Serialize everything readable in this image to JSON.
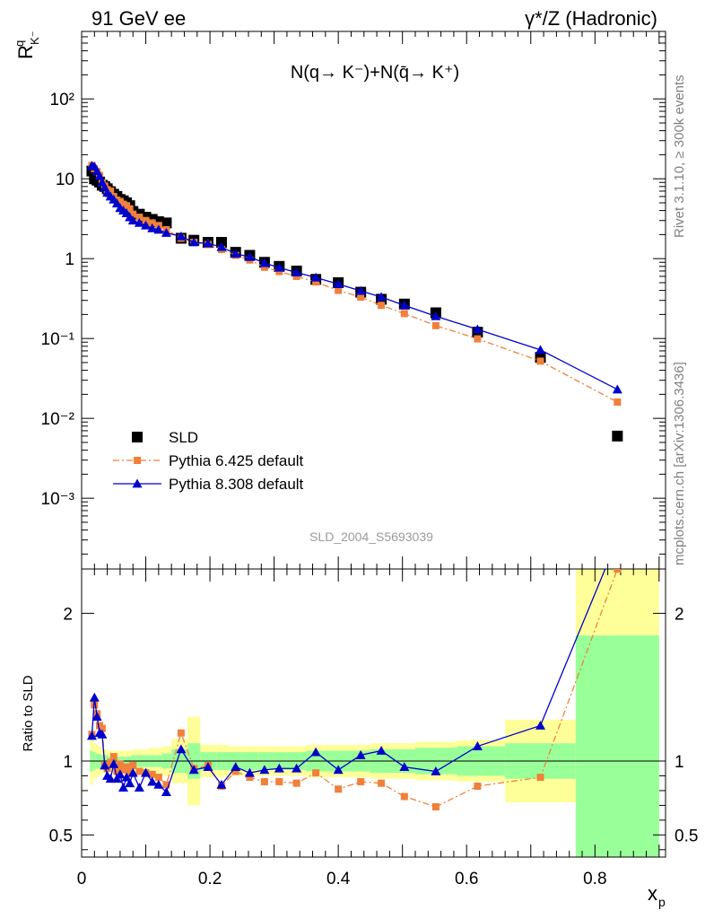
{
  "header": {
    "left": "91 GeV ee",
    "right": "γ*/Z (Hadronic)"
  },
  "side_labels": {
    "rivet": "Rivet 3.1.10, ≥ 300k events",
    "mcplots": "mcplots.cern.ch [arXiv:1306.3436]"
  },
  "watermark": "SLD_2004_S5693039",
  "chart_data": [
    {
      "type": "scatter",
      "panel": "main",
      "title": "N(q→ K⁻)+N(q̄→ K⁺)",
      "ylabel": "R^q_K⁻",
      "yscale": "log",
      "ylim": [
        0.00013,
        700
      ],
      "xlim": [
        0,
        0.91
      ],
      "y_ticks": [
        "10⁻³",
        "10⁻²",
        "10⁻¹",
        "1",
        "10",
        "10²"
      ],
      "legend": [
        "SLD",
        "Pythia 6.425 default",
        "Pythia 8.308 default"
      ],
      "series": [
        {
          "name": "SLD",
          "color": "#000000",
          "marker": "square",
          "x": [
            0.016,
            0.02,
            0.024,
            0.028,
            0.032,
            0.036,
            0.04,
            0.045,
            0.05,
            0.055,
            0.06,
            0.065,
            0.07,
            0.075,
            0.08,
            0.09,
            0.1,
            0.11,
            0.12,
            0.132,
            0.155,
            0.175,
            0.197,
            0.218,
            0.24,
            0.262,
            0.285,
            0.308,
            0.335,
            0.365,
            0.4,
            0.435,
            0.467,
            0.503,
            0.552,
            0.617,
            0.715,
            0.835
          ],
          "y": [
            12.5,
            10.0,
            9.6,
            9.1,
            8.3,
            8.0,
            7.5,
            6.9,
            6.4,
            6.0,
            5.5,
            5.3,
            5.0,
            4.6,
            3.9,
            3.6,
            3.3,
            3.1,
            2.9,
            2.8,
            1.8,
            1.7,
            1.6,
            1.6,
            1.2,
            1.1,
            0.9,
            0.8,
            0.7,
            0.55,
            0.5,
            0.38,
            0.31,
            0.27,
            0.21,
            0.12,
            0.058,
            0.006
          ]
        },
        {
          "name": "Pythia 6.425 default",
          "color": "#f0803a",
          "marker": "square",
          "x": [
            0.016,
            0.02,
            0.024,
            0.028,
            0.032,
            0.036,
            0.04,
            0.045,
            0.05,
            0.055,
            0.06,
            0.065,
            0.07,
            0.075,
            0.08,
            0.09,
            0.1,
            0.11,
            0.12,
            0.132,
            0.155,
            0.175,
            0.197,
            0.218,
            0.24,
            0.262,
            0.285,
            0.308,
            0.335,
            0.365,
            0.4,
            0.435,
            0.467,
            0.503,
            0.552,
            0.617,
            0.715,
            0.835
          ],
          "y": [
            14.7,
            13.4,
            12.3,
            11.0,
            8.9,
            8.1,
            7.3,
            7.0,
            6.0,
            5.4,
            5.2,
            4.8,
            4.6,
            4.2,
            3.6,
            3.3,
            3.0,
            2.8,
            2.6,
            2.3,
            1.8,
            1.6,
            1.5,
            1.3,
            1.1,
            0.96,
            0.78,
            0.69,
            0.6,
            0.51,
            0.4,
            0.33,
            0.26,
            0.205,
            0.145,
            0.099,
            0.052,
            0.016
          ]
        },
        {
          "name": "Pythia 8.308 default",
          "color": "#0000cc",
          "marker": "triangle",
          "x": [
            0.016,
            0.02,
            0.024,
            0.028,
            0.032,
            0.036,
            0.04,
            0.045,
            0.05,
            0.055,
            0.06,
            0.065,
            0.07,
            0.075,
            0.08,
            0.09,
            0.1,
            0.11,
            0.12,
            0.132,
            0.155,
            0.175,
            0.197,
            0.218,
            0.24,
            0.262,
            0.285,
            0.308,
            0.335,
            0.365,
            0.4,
            0.435,
            0.467,
            0.503,
            0.552,
            0.617,
            0.715,
            0.835
          ],
          "y": [
            14.6,
            14.2,
            12.5,
            10.8,
            9.0,
            7.8,
            6.7,
            6.0,
            5.5,
            4.9,
            4.3,
            4.0,
            3.7,
            3.3,
            3.0,
            2.8,
            2.6,
            2.4,
            2.3,
            2.1,
            1.9,
            1.6,
            1.55,
            1.4,
            1.15,
            1.05,
            0.88,
            0.77,
            0.67,
            0.58,
            0.48,
            0.395,
            0.33,
            0.26,
            0.19,
            0.13,
            0.072,
            0.023
          ]
        }
      ]
    },
    {
      "type": "line",
      "panel": "ratio",
      "ylabel": "Ratio to SLD",
      "xlabel": "x_p",
      "ylim": [
        0.35,
        2.3
      ],
      "xlim": [
        0,
        0.91
      ],
      "y_ticks": [
        "0.5",
        "1",
        "2"
      ],
      "x_ticks": [
        "0",
        "0.2",
        "0.4",
        "0.6",
        "0.8"
      ],
      "bands": [
        {
          "x0": 0.013,
          "x1": 0.018,
          "stat_lo": 0.93,
          "stat_hi": 1.07,
          "tot_lo": 0.84,
          "tot_hi": 1.16
        },
        {
          "x0": 0.018,
          "x1": 0.022,
          "stat_lo": 0.94,
          "stat_hi": 1.06,
          "tot_lo": 0.88,
          "tot_hi": 1.12
        },
        {
          "x0": 0.022,
          "x1": 0.026,
          "stat_lo": 0.95,
          "stat_hi": 1.05,
          "tot_lo": 0.89,
          "tot_hi": 1.11
        },
        {
          "x0": 0.026,
          "x1": 0.03,
          "stat_lo": 0.95,
          "stat_hi": 1.05,
          "tot_lo": 0.9,
          "tot_hi": 1.1
        },
        {
          "x0": 0.03,
          "x1": 0.034,
          "stat_lo": 0.96,
          "stat_hi": 1.04,
          "tot_lo": 0.91,
          "tot_hi": 1.09
        },
        {
          "x0": 0.034,
          "x1": 0.038,
          "stat_lo": 0.96,
          "stat_hi": 1.04,
          "tot_lo": 0.92,
          "tot_hi": 1.08
        },
        {
          "x0": 0.038,
          "x1": 0.042,
          "stat_lo": 0.96,
          "stat_hi": 1.04,
          "tot_lo": 0.92,
          "tot_hi": 1.08
        },
        {
          "x0": 0.042,
          "x1": 0.048,
          "stat_lo": 0.97,
          "stat_hi": 1.03,
          "tot_lo": 0.93,
          "tot_hi": 1.07
        },
        {
          "x0": 0.048,
          "x1": 0.052,
          "stat_lo": 0.97,
          "stat_hi": 1.03,
          "tot_lo": 0.93,
          "tot_hi": 1.07
        },
        {
          "x0": 0.052,
          "x1": 0.058,
          "stat_lo": 0.97,
          "stat_hi": 1.03,
          "tot_lo": 0.93,
          "tot_hi": 1.07
        },
        {
          "x0": 0.058,
          "x1": 0.062,
          "stat_lo": 0.97,
          "stat_hi": 1.03,
          "tot_lo": 0.93,
          "tot_hi": 1.07
        },
        {
          "x0": 0.062,
          "x1": 0.068,
          "stat_lo": 0.97,
          "stat_hi": 1.03,
          "tot_lo": 0.93,
          "tot_hi": 1.07
        },
        {
          "x0": 0.068,
          "x1": 0.072,
          "stat_lo": 0.97,
          "stat_hi": 1.03,
          "tot_lo": 0.93,
          "tot_hi": 1.07
        },
        {
          "x0": 0.072,
          "x1": 0.078,
          "stat_lo": 0.97,
          "stat_hi": 1.03,
          "tot_lo": 0.93,
          "tot_hi": 1.07
        },
        {
          "x0": 0.078,
          "x1": 0.085,
          "stat_lo": 0.96,
          "stat_hi": 1.04,
          "tot_lo": 0.92,
          "tot_hi": 1.08
        },
        {
          "x0": 0.085,
          "x1": 0.095,
          "stat_lo": 0.96,
          "stat_hi": 1.04,
          "tot_lo": 0.92,
          "tot_hi": 1.08
        },
        {
          "x0": 0.095,
          "x1": 0.105,
          "stat_lo": 0.96,
          "stat_hi": 1.04,
          "tot_lo": 0.92,
          "tot_hi": 1.08
        },
        {
          "x0": 0.105,
          "x1": 0.115,
          "stat_lo": 0.96,
          "stat_hi": 1.04,
          "tot_lo": 0.91,
          "tot_hi": 1.09
        },
        {
          "x0": 0.115,
          "x1": 0.125,
          "stat_lo": 0.96,
          "stat_hi": 1.04,
          "tot_lo": 0.91,
          "tot_hi": 1.09
        },
        {
          "x0": 0.125,
          "x1": 0.14,
          "stat_lo": 0.95,
          "stat_hi": 1.05,
          "tot_lo": 0.9,
          "tot_hi": 1.1
        },
        {
          "x0": 0.14,
          "x1": 0.165,
          "stat_lo": 0.92,
          "stat_hi": 1.08,
          "tot_lo": 0.85,
          "tot_hi": 1.15
        },
        {
          "x0": 0.165,
          "x1": 0.185,
          "stat_lo": 0.88,
          "stat_hi": 1.12,
          "tot_lo": 0.7,
          "tot_hi": 1.3
        },
        {
          "x0": 0.185,
          "x1": 0.21,
          "stat_lo": 0.94,
          "stat_hi": 1.06,
          "tot_lo": 0.89,
          "tot_hi": 1.11
        },
        {
          "x0": 0.21,
          "x1": 0.23,
          "stat_lo": 0.94,
          "stat_hi": 1.06,
          "tot_lo": 0.89,
          "tot_hi": 1.11
        },
        {
          "x0": 0.23,
          "x1": 0.25,
          "stat_lo": 0.94,
          "stat_hi": 1.06,
          "tot_lo": 0.9,
          "tot_hi": 1.1
        },
        {
          "x0": 0.25,
          "x1": 0.275,
          "stat_lo": 0.94,
          "stat_hi": 1.06,
          "tot_lo": 0.9,
          "tot_hi": 1.1
        },
        {
          "x0": 0.275,
          "x1": 0.3,
          "stat_lo": 0.94,
          "stat_hi": 1.06,
          "tot_lo": 0.9,
          "tot_hi": 1.1
        },
        {
          "x0": 0.3,
          "x1": 0.32,
          "stat_lo": 0.94,
          "stat_hi": 1.06,
          "tot_lo": 0.9,
          "tot_hi": 1.1
        },
        {
          "x0": 0.32,
          "x1": 0.35,
          "stat_lo": 0.94,
          "stat_hi": 1.06,
          "tot_lo": 0.9,
          "tot_hi": 1.1
        },
        {
          "x0": 0.35,
          "x1": 0.38,
          "stat_lo": 0.93,
          "stat_hi": 1.07,
          "tot_lo": 0.89,
          "tot_hi": 1.11
        },
        {
          "x0": 0.38,
          "x1": 0.42,
          "stat_lo": 0.93,
          "stat_hi": 1.07,
          "tot_lo": 0.89,
          "tot_hi": 1.11
        },
        {
          "x0": 0.42,
          "x1": 0.45,
          "stat_lo": 0.93,
          "stat_hi": 1.07,
          "tot_lo": 0.89,
          "tot_hi": 1.11
        },
        {
          "x0": 0.45,
          "x1": 0.485,
          "stat_lo": 0.92,
          "stat_hi": 1.08,
          "tot_lo": 0.88,
          "tot_hi": 1.12
        },
        {
          "x0": 0.485,
          "x1": 0.52,
          "stat_lo": 0.92,
          "stat_hi": 1.08,
          "tot_lo": 0.88,
          "tot_hi": 1.12
        },
        {
          "x0": 0.52,
          "x1": 0.585,
          "stat_lo": 0.91,
          "stat_hi": 1.09,
          "tot_lo": 0.87,
          "tot_hi": 1.13
        },
        {
          "x0": 0.585,
          "x1": 0.66,
          "stat_lo": 0.9,
          "stat_hi": 1.1,
          "tot_lo": 0.86,
          "tot_hi": 1.14
        },
        {
          "x0": 0.66,
          "x1": 0.77,
          "stat_lo": 0.88,
          "stat_hi": 1.12,
          "tot_lo": 0.72,
          "tot_hi": 1.28
        },
        {
          "x0": 0.77,
          "x1": 0.9,
          "stat_lo": 0.35,
          "stat_hi": 1.85,
          "tot_lo": 0.35,
          "tot_hi": 2.3
        }
      ],
      "series": [
        {
          "name": "Pythia 6.425 default",
          "color": "#f0803a",
          "marker": "square",
          "x": [
            0.016,
            0.02,
            0.024,
            0.028,
            0.032,
            0.036,
            0.04,
            0.045,
            0.05,
            0.055,
            0.06,
            0.065,
            0.07,
            0.075,
            0.08,
            0.09,
            0.1,
            0.11,
            0.12,
            0.132,
            0.155,
            0.175,
            0.197,
            0.218,
            0.24,
            0.262,
            0.285,
            0.308,
            0.335,
            0.365,
            0.4,
            0.435,
            0.467,
            0.503,
            0.552,
            0.617,
            0.715,
            0.835
          ],
          "y": [
            1.18,
            1.38,
            1.32,
            1.24,
            1.22,
            0.97,
            0.95,
            0.99,
            1.03,
            0.93,
            0.98,
            0.94,
            0.96,
            0.92,
            0.97,
            0.93,
            0.92,
            0.91,
            0.89,
            0.84,
            1.19,
            0.95,
            0.97,
            0.83,
            0.93,
            0.89,
            0.86,
            0.86,
            0.85,
            0.92,
            0.81,
            0.86,
            0.85,
            0.76,
            0.69,
            0.83,
            0.89,
            2.3
          ]
        },
        {
          "name": "Pythia 8.308 default",
          "color": "#0000cc",
          "marker": "triangle",
          "x": [
            0.016,
            0.02,
            0.024,
            0.028,
            0.032,
            0.036,
            0.04,
            0.045,
            0.05,
            0.055,
            0.06,
            0.065,
            0.07,
            0.075,
            0.08,
            0.09,
            0.1,
            0.11,
            0.12,
            0.132,
            0.155,
            0.175,
            0.197,
            0.218,
            0.24,
            0.262,
            0.285,
            0.308,
            0.335,
            0.365,
            0.4,
            0.435,
            0.467,
            0.503,
            0.552,
            0.617,
            0.715,
            0.835
          ],
          "y": [
            1.17,
            1.43,
            1.3,
            1.19,
            1.18,
            0.97,
            0.9,
            0.88,
            0.98,
            0.88,
            0.91,
            0.82,
            0.89,
            0.85,
            0.92,
            0.82,
            0.92,
            0.86,
            0.84,
            0.79,
            1.08,
            0.94,
            0.96,
            0.84,
            0.96,
            0.92,
            0.94,
            0.95,
            0.95,
            1.06,
            0.94,
            1.04,
            1.07,
            0.96,
            0.93,
            1.1,
            1.24,
            2.5
          ]
        }
      ]
    }
  ]
}
